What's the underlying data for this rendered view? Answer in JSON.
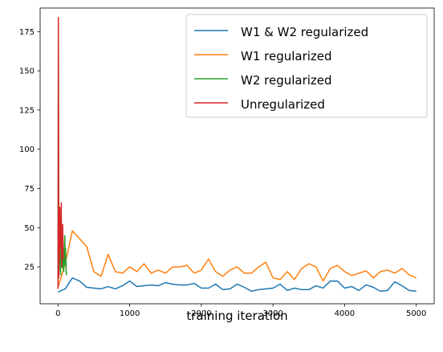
{
  "chart_data": {
    "type": "line",
    "title": "",
    "xlabel": "training iteration",
    "ylabel": "",
    "xlim": [
      -250,
      5250
    ],
    "ylim": [
      1.5,
      190
    ],
    "xticks": [
      0,
      1000,
      2000,
      3000,
      4000,
      5000
    ],
    "yticks": [
      25,
      50,
      75,
      100,
      125,
      150,
      175
    ],
    "xtick_labels": [
      "0",
      "1000",
      "2000",
      "3000",
      "4000",
      "5000"
    ],
    "ytick_labels": [
      "25",
      "50",
      "75",
      "100",
      "125",
      "150",
      "175"
    ],
    "grid": false,
    "legend_position": "top-right",
    "series": [
      {
        "name": "W1 & W2 regularized",
        "color": "#1f77b4",
        "points": [
          [
            0,
            9
          ],
          [
            100,
            11
          ],
          [
            200,
            18
          ],
          [
            300,
            16
          ],
          [
            400,
            12
          ],
          [
            500,
            11.5
          ],
          [
            600,
            11
          ],
          [
            700,
            12.5
          ],
          [
            800,
            11
          ],
          [
            900,
            13
          ],
          [
            1000,
            16
          ],
          [
            1100,
            12.5
          ],
          [
            1200,
            13
          ],
          [
            1300,
            13.5
          ],
          [
            1400,
            13
          ],
          [
            1500,
            15
          ],
          [
            1600,
            14
          ],
          [
            1700,
            13.5
          ],
          [
            1800,
            13.5
          ],
          [
            1900,
            14.5
          ],
          [
            2000,
            11.5
          ],
          [
            2100,
            11.5
          ],
          [
            2200,
            14
          ],
          [
            2300,
            10.5
          ],
          [
            2400,
            11
          ],
          [
            2500,
            14
          ],
          [
            2600,
            12
          ],
          [
            2700,
            9.5
          ],
          [
            2800,
            10.5
          ],
          [
            2900,
            11
          ],
          [
            3000,
            11.5
          ],
          [
            3100,
            14
          ],
          [
            3200,
            10
          ],
          [
            3300,
            11.5
          ],
          [
            3400,
            10.5
          ],
          [
            3500,
            10.5
          ],
          [
            3600,
            13
          ],
          [
            3700,
            11.5
          ],
          [
            3800,
            16
          ],
          [
            3900,
            16
          ],
          [
            4000,
            11.5
          ],
          [
            4100,
            12.5
          ],
          [
            4200,
            10
          ],
          [
            4300,
            13.5
          ],
          [
            4400,
            12
          ],
          [
            4500,
            9.5
          ],
          [
            4600,
            10
          ],
          [
            4700,
            15.5
          ],
          [
            4800,
            13
          ],
          [
            4900,
            10
          ],
          [
            5000,
            9.5
          ]
        ]
      },
      {
        "name": "W1 regularized",
        "color": "#ff7f0e",
        "points": [
          [
            0,
            12
          ],
          [
            100,
            27
          ],
          [
            200,
            48
          ],
          [
            300,
            43
          ],
          [
            400,
            38
          ],
          [
            500,
            22
          ],
          [
            600,
            19
          ],
          [
            700,
            33
          ],
          [
            800,
            22
          ],
          [
            900,
            21
          ],
          [
            1000,
            25
          ],
          [
            1100,
            22
          ],
          [
            1200,
            27
          ],
          [
            1300,
            21
          ],
          [
            1400,
            23
          ],
          [
            1500,
            21
          ],
          [
            1600,
            25
          ],
          [
            1700,
            25
          ],
          [
            1800,
            26
          ],
          [
            1900,
            21
          ],
          [
            2000,
            23
          ],
          [
            2100,
            30
          ],
          [
            2200,
            22
          ],
          [
            2300,
            19
          ],
          [
            2400,
            23
          ],
          [
            2500,
            25
          ],
          [
            2600,
            21
          ],
          [
            2700,
            21
          ],
          [
            2800,
            25
          ],
          [
            2900,
            28
          ],
          [
            3000,
            18
          ],
          [
            3100,
            17
          ],
          [
            3200,
            22
          ],
          [
            3300,
            17
          ],
          [
            3400,
            24
          ],
          [
            3500,
            27
          ],
          [
            3600,
            25
          ],
          [
            3700,
            16
          ],
          [
            3800,
            24
          ],
          [
            3900,
            26
          ],
          [
            4000,
            22
          ],
          [
            4100,
            19.5
          ],
          [
            4200,
            21
          ],
          [
            4300,
            22.5
          ],
          [
            4400,
            18
          ],
          [
            4500,
            22
          ],
          [
            4600,
            23
          ],
          [
            4700,
            21
          ],
          [
            4800,
            24
          ],
          [
            4900,
            20
          ],
          [
            5000,
            18
          ]
        ]
      },
      {
        "name": "W2 regularized",
        "color": "#2ca02c",
        "points": [
          [
            0,
            12
          ],
          [
            5,
            177
          ],
          [
            10,
            62
          ],
          [
            15,
            22
          ],
          [
            20,
            46
          ],
          [
            25,
            28
          ],
          [
            30,
            40
          ],
          [
            35,
            20
          ],
          [
            40,
            35
          ],
          [
            45,
            25
          ],
          [
            50,
            38
          ],
          [
            55,
            27
          ],
          [
            60,
            33
          ],
          [
            65,
            24
          ],
          [
            70,
            36
          ],
          [
            75,
            28
          ],
          [
            80,
            22
          ],
          [
            85,
            32
          ],
          [
            90,
            40
          ],
          [
            95,
            45
          ],
          [
            100,
            26
          ],
          [
            105,
            37
          ],
          [
            110,
            30
          ],
          [
            115,
            20
          ],
          [
            120,
            22
          ]
        ]
      },
      {
        "name": "Unregularized",
        "color": "#d62728",
        "points": [
          [
            0,
            11
          ],
          [
            5,
            184
          ],
          [
            10,
            18
          ],
          [
            15,
            46
          ],
          [
            20,
            30
          ],
          [
            25,
            63
          ],
          [
            30,
            40
          ],
          [
            35,
            55
          ],
          [
            40,
            37
          ],
          [
            45,
            66
          ],
          [
            50,
            25
          ],
          [
            55,
            42
          ],
          [
            60,
            35
          ],
          [
            65,
            52
          ],
          [
            70,
            34
          ],
          [
            75,
            30
          ]
        ]
      }
    ]
  }
}
